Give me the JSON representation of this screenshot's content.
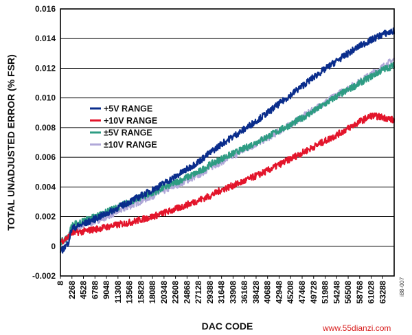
{
  "chart_data": {
    "type": "line",
    "title": "",
    "xlabel": "DAC CODE",
    "ylabel": "TOTAL UNADJUSTED ERROR (% FSR)",
    "ylim": [
      -0.002,
      0.016
    ],
    "yticks": [
      "0.016",
      "0.014",
      "0.012",
      "0.010",
      "0.008",
      "0.006",
      "0.004",
      "0.002",
      "0",
      "-0.002"
    ],
    "xlim": [
      8,
      65535
    ],
    "xticks": [
      "8",
      "2268",
      "4528",
      "6788",
      "9048",
      "11308",
      "13568",
      "15828",
      "18088",
      "20348",
      "22608",
      "24868",
      "27128",
      "29388",
      "31648",
      "33908",
      "36168",
      "38428",
      "40688",
      "42948",
      "45208",
      "47468",
      "49728",
      "51988",
      "54248",
      "56508",
      "58768",
      "61028",
      "63288"
    ],
    "grid": "horizontal",
    "legend_position": "center-left",
    "series": [
      {
        "name": "+5V RANGE",
        "color": "#0a2d8c",
        "x": [
          8,
          1500,
          2268,
          4528,
          9048,
          13568,
          18088,
          22608,
          27128,
          29388,
          31648,
          36168,
          40688,
          45208,
          49728,
          54248,
          58768,
          63288,
          65535
        ],
        "y": [
          -0.0004,
          0.0002,
          0.0012,
          0.0015,
          0.0022,
          0.003,
          0.0038,
          0.0047,
          0.0057,
          0.0063,
          0.0069,
          0.0079,
          0.009,
          0.0102,
          0.0114,
          0.0125,
          0.0135,
          0.0143,
          0.0145
        ]
      },
      {
        "name": "+10V RANGE",
        "color": "#e3152b",
        "x": [
          8,
          1500,
          2268,
          4528,
          9048,
          13568,
          18088,
          22608,
          27128,
          29388,
          31648,
          36168,
          40688,
          45208,
          49728,
          54248,
          58768,
          61028,
          63288,
          65535
        ],
        "y": [
          0.0003,
          0.0006,
          0.0009,
          0.001,
          0.0013,
          0.0016,
          0.002,
          0.0025,
          0.0031,
          0.0034,
          0.0038,
          0.0044,
          0.0051,
          0.0059,
          0.0067,
          0.0075,
          0.0084,
          0.0088,
          0.0087,
          0.0085
        ]
      },
      {
        "name": "±5V RANGE",
        "color": "#2e9c83",
        "x": [
          8,
          1500,
          2268,
          4528,
          9048,
          13568,
          18088,
          22608,
          27128,
          29388,
          31648,
          36168,
          40688,
          45208,
          49728,
          54248,
          58768,
          63288,
          65535
        ],
        "y": [
          0.0003,
          0.0006,
          0.0014,
          0.0017,
          0.0023,
          0.003,
          0.0036,
          0.0043,
          0.005,
          0.0055,
          0.0059,
          0.0066,
          0.0074,
          0.0082,
          0.0091,
          0.0101,
          0.011,
          0.0119,
          0.0122
        ]
      },
      {
        "name": "±10V RANGE",
        "color": "#b0a8d8",
        "x": [
          8,
          1500,
          2268,
          4528,
          9048,
          13568,
          18088,
          22608,
          27128,
          29388,
          31648,
          36168,
          40688,
          45208,
          49728,
          54248,
          58768,
          63288,
          65535
        ],
        "y": [
          0.0002,
          0.0005,
          0.0012,
          0.0014,
          0.002,
          0.0027,
          0.0034,
          0.0041,
          0.0048,
          0.0053,
          0.0057,
          0.0065,
          0.0073,
          0.0082,
          0.0092,
          0.0102,
          0.0111,
          0.0121,
          0.0126
        ]
      }
    ]
  },
  "watermark": {
    "main": "www.55dianzi.com",
    "code": "i88-007"
  }
}
